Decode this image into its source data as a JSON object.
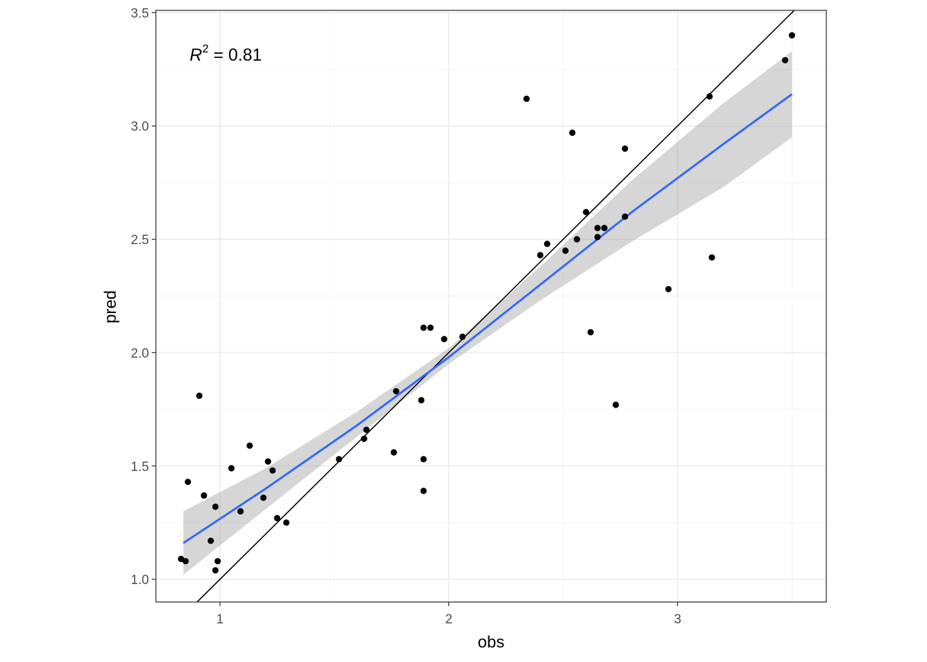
{
  "chart_data": {
    "type": "scatter",
    "xlabel": "obs",
    "ylabel": "pred",
    "xlim": [
      0.72,
      3.65
    ],
    "ylim": [
      0.9,
      3.51
    ],
    "x_ticks": [
      1,
      2,
      3
    ],
    "x_tick_labels": [
      "1",
      "2",
      "3"
    ],
    "y_ticks": [
      1.0,
      1.5,
      2.0,
      2.5,
      3.0,
      3.5
    ],
    "y_tick_labels": [
      "1.0",
      "1.5",
      "2.0",
      "2.5",
      "3.0",
      "3.5"
    ],
    "grid": true,
    "annotation": {
      "symbol": "R",
      "superscript": "2",
      "text": " = 0.81"
    },
    "identity_line": {
      "slope": 1,
      "intercept": 0,
      "color": "#000000"
    },
    "fit": {
      "method": "lm",
      "color": "#3366FF",
      "band_color": "#999999",
      "x": [
        0.84,
        1.2,
        1.6,
        2.0,
        2.4,
        2.8,
        3.2,
        3.5
      ],
      "y": [
        1.16,
        1.4,
        1.68,
        1.98,
        2.3,
        2.62,
        2.92,
        3.14
      ],
      "lower": [
        1.02,
        1.31,
        1.63,
        1.95,
        2.23,
        2.49,
        2.73,
        2.95
      ],
      "upper": [
        1.3,
        1.49,
        1.74,
        2.02,
        2.38,
        2.76,
        3.1,
        3.33
      ]
    },
    "series": [
      {
        "color": "#000000",
        "points": [
          [
            0.83,
            1.09
          ],
          [
            0.85,
            1.08
          ],
          [
            0.86,
            1.43
          ],
          [
            0.91,
            1.81
          ],
          [
            0.93,
            1.37
          ],
          [
            0.96,
            1.17
          ],
          [
            0.98,
            1.04
          ],
          [
            0.98,
            1.32
          ],
          [
            0.99,
            1.08
          ],
          [
            1.05,
            1.49
          ],
          [
            1.09,
            1.3
          ],
          [
            1.13,
            1.59
          ],
          [
            1.19,
            1.36
          ],
          [
            1.21,
            1.52
          ],
          [
            1.23,
            1.48
          ],
          [
            1.25,
            1.27
          ],
          [
            1.29,
            1.25
          ],
          [
            1.52,
            1.53
          ],
          [
            1.63,
            1.62
          ],
          [
            1.64,
            1.66
          ],
          [
            1.76,
            1.56
          ],
          [
            1.77,
            1.83
          ],
          [
            1.88,
            1.79
          ],
          [
            1.89,
            1.53
          ],
          [
            1.89,
            1.39
          ],
          [
            1.89,
            2.11
          ],
          [
            1.92,
            2.11
          ],
          [
            1.98,
            2.06
          ],
          [
            2.06,
            2.07
          ],
          [
            2.34,
            3.12
          ],
          [
            2.4,
            2.43
          ],
          [
            2.43,
            2.48
          ],
          [
            2.51,
            2.45
          ],
          [
            2.54,
            2.97
          ],
          [
            2.56,
            2.5
          ],
          [
            2.6,
            2.62
          ],
          [
            2.62,
            2.09
          ],
          [
            2.65,
            2.55
          ],
          [
            2.65,
            2.51
          ],
          [
            2.68,
            2.55
          ],
          [
            2.73,
            1.77
          ],
          [
            2.77,
            2.9
          ],
          [
            2.77,
            2.6
          ],
          [
            2.96,
            2.28
          ],
          [
            3.14,
            3.13
          ],
          [
            3.15,
            2.42
          ],
          [
            3.47,
            3.29
          ],
          [
            3.5,
            3.4
          ]
        ]
      }
    ]
  }
}
